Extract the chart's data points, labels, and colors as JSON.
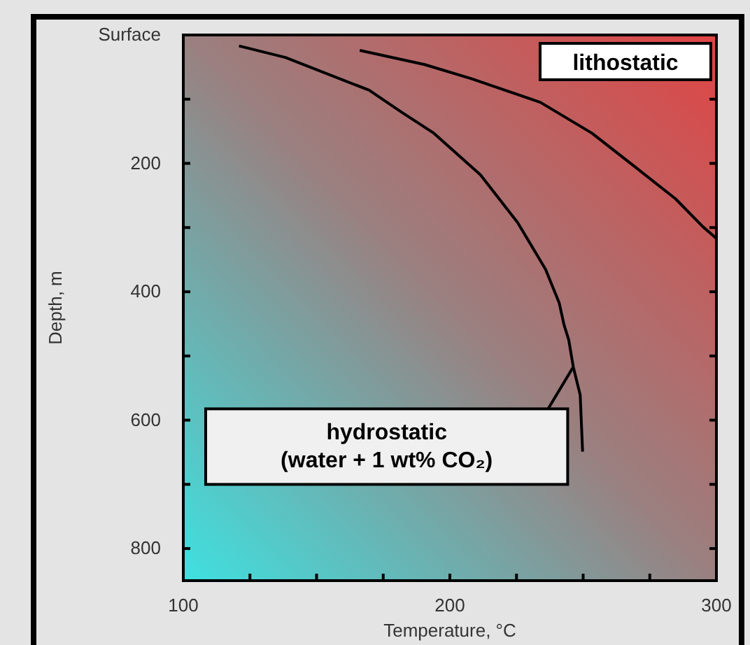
{
  "chart_data": {
    "type": "line",
    "xlabel": "Temperature, °C",
    "ylabel": "Depth, m",
    "xlim": [
      100,
      300
    ],
    "xticks": [
      100,
      {
        "value": 125,
        "label": null
      },
      {
        "value": 150,
        "label": null
      },
      {
        "value": 175,
        "label": null
      },
      200,
      {
        "value": 225,
        "label": null
      },
      {
        "value": 250,
        "label": null
      },
      {
        "value": 275,
        "label": null
      },
      300
    ],
    "ylim": [
      850,
      0
    ],
    "yticks": [
      {
        "value": 0,
        "label": "Surface"
      },
      {
        "value": 100,
        "label": null
      },
      200,
      {
        "value": 300,
        "label": null
      },
      400,
      {
        "value": 500,
        "label": null
      },
      600,
      {
        "value": 700,
        "label": null
      },
      800
    ],
    "grid": false,
    "marker": "none",
    "line_style": "solid",
    "series": [
      {
        "color": "#000000",
        "x": [
          120.9,
          138.3,
          169.7,
          181.8,
          194,
          211.5,
          225.4,
          235.9,
          241,
          242.8,
          244.6,
          246.3,
          248.9,
          249.8
        ],
        "values": [
          17,
          35,
          86,
          120,
          153,
          218,
          292,
          365,
          417,
          451,
          475,
          517,
          561,
          649
        ]
      },
      {
        "color": "#000000",
        "x": [
          166.2,
          190.5,
          208,
          234,
          253.3,
          269,
          284.6,
          295,
          300
        ],
        "values": [
          24,
          46,
          68,
          105,
          153,
          204,
          255,
          299,
          317
        ]
      }
    ],
    "annotations": [
      "lithostatic",
      "hydrostatic\n(water + 1 wt% CO₂)"
    ]
  }
}
